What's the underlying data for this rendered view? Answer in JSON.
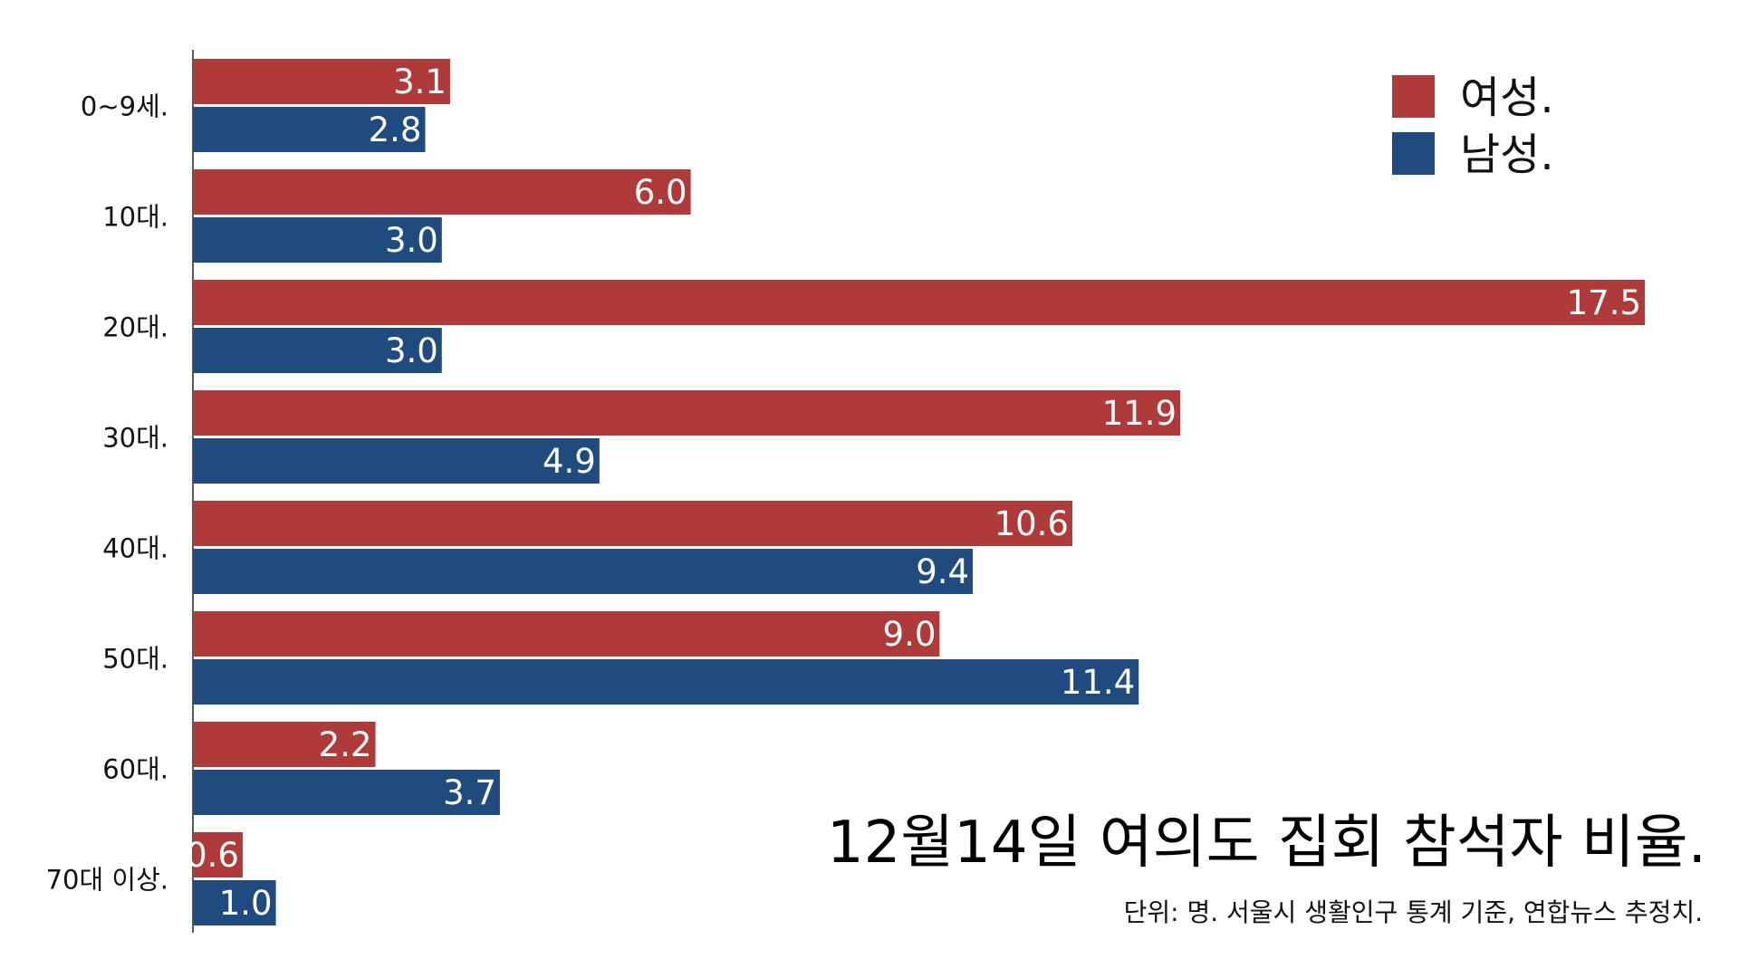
{
  "chart_data": {
    "type": "bar",
    "orientation": "horizontal",
    "title": "12월14일 여의도 집회 참석자 비율.",
    "note": "단위: 명. 서울시 생활인구 통계 기준, 연합뉴스 추정치.",
    "categories": [
      "0~9세.",
      "10대.",
      "20대.",
      "30대.",
      "40대.",
      "50대.",
      "60대.",
      "70대 이상."
    ],
    "series": [
      {
        "name": "여성.",
        "color": "#ae3a3a",
        "values": [
          3.1,
          6.0,
          17.5,
          11.9,
          10.6,
          9.0,
          2.2,
          0.6
        ]
      },
      {
        "name": "남성.",
        "color": "#1f4b7e",
        "values": [
          2.8,
          3.0,
          3.0,
          4.9,
          9.4,
          11.4,
          3.7,
          1.0
        ]
      }
    ],
    "value_labels": [
      [
        "3.1",
        "6.0",
        "17.5",
        "11.9",
        "10.6",
        "9.0",
        "2.2",
        "0.6"
      ],
      [
        "2.8",
        "3.0",
        "3.0",
        "4.9",
        "9.4",
        "11.4",
        "3.7",
        "1.0"
      ]
    ],
    "xlim": [
      0,
      17.5
    ],
    "grid": false,
    "legend_position": "top-right"
  }
}
